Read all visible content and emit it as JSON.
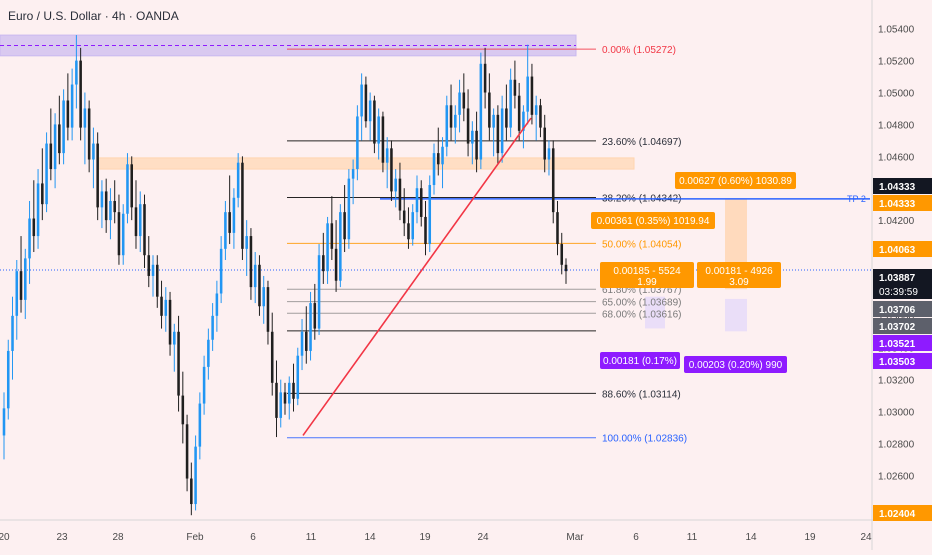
{
  "header": {
    "title": "Euro / U.S. Dollar · 4h · OANDA"
  },
  "colors": {
    "bg": "#fdf0f1",
    "up": "#2196f3",
    "down": "#1f1f1f",
    "trend": "#f23645",
    "fib_black": "#000000",
    "fib_orange": "#ff9800",
    "fib_blue": "#2962ff",
    "zone_purple": "#c9b8f0",
    "zone_orange": "#ffd5b0",
    "label_orange": "#ff9800",
    "label_purple": "#8e1bff",
    "axis_text": "#4a4a4a",
    "tp_blue": "#2962ff"
  },
  "chart_data": {
    "type": "candlestick",
    "symbol": "Euro / U.S. Dollar",
    "interval": "4h",
    "source": "OANDA",
    "x_tick_labels": [
      "20",
      "23",
      "28",
      "Feb",
      "6",
      "11",
      "14",
      "19",
      "24",
      "Mar",
      "6",
      "11",
      "14",
      "19",
      "24"
    ],
    "y_tick_labels": [
      "1.05400",
      "1.05200",
      "1.05000",
      "1.04800",
      "1.04600",
      "1.04400",
      "1.04200",
      "1.04000",
      "1.03800",
      "1.03600",
      "1.03400",
      "1.03200",
      "1.03000",
      "1.02800",
      "1.02600"
    ],
    "ylim": [
      1.0232,
      1.0558
    ],
    "fib_levels": [
      {
        "label": "0.00% (1.05272)",
        "value": 1.05272,
        "color": "#f23645"
      },
      {
        "label": "23.60% (1.04697)",
        "value": 1.04697,
        "color": "#000000"
      },
      {
        "label": "38.20% (1.04342)",
        "value": 1.04342,
        "color": "#000000"
      },
      {
        "label": "50.00% (1.04054)",
        "value": 1.04054,
        "color": "#ff9800"
      },
      {
        "label": "61.80% (1.03767)",
        "value": 1.03767,
        "color": "#7a7a7a"
      },
      {
        "label": "65.00% (1.03689)",
        "value": 1.03689,
        "color": "#7a7a7a"
      },
      {
        "label": "68.00% (1.03616)",
        "value": 1.03616,
        "color": "#7a7a7a"
      },
      {
        "label": "",
        "value": 1.03506,
        "color": "#000000"
      },
      {
        "label": "88.60% (1.03114)",
        "value": 1.03114,
        "color": "#000000"
      },
      {
        "label": "100.00% (1.02836)",
        "value": 1.02836,
        "color": "#2962ff"
      }
    ],
    "zones": [
      {
        "top": 1.0536,
        "bottom": 1.0523,
        "color": "#c9b8f0"
      },
      {
        "top": 1.0459,
        "bottom": 1.0452,
        "color": "#ffd5b0"
      }
    ],
    "measure_labels": [
      {
        "text": "0.00627 (0.60%) 1030.89",
        "color": "#ff9800"
      },
      {
        "text": "0.00361 (0.35%) 1019.94",
        "color": "#ff9800"
      },
      {
        "text": "0.00185 - 5524",
        "sub": "1.99",
        "color": "#ff9800"
      },
      {
        "text": "0.00181 - 4926",
        "sub": "3.09",
        "color": "#ff9800"
      },
      {
        "text": "0.00181 (0.17%)",
        "color": "#8e1bff"
      },
      {
        "text": "0.00203 (0.20%) 990",
        "color": "#8e1bff"
      }
    ],
    "tp_label": "TP 2",
    "price_tags": [
      {
        "text": "1.04333",
        "value": 1.04333,
        "color": "#131722"
      },
      {
        "text": "1.04333",
        "value": 1.04333,
        "color": "#ff9800"
      },
      {
        "text": "1.04063",
        "value": 1.04063,
        "color": "#ff9800"
      },
      {
        "text": "1.03887",
        "sub": "03:39:59",
        "value": 1.03887,
        "color": "#131722"
      },
      {
        "text": "1.03706",
        "value": 1.03706,
        "color": "#5d606b"
      },
      {
        "text": "1.03702",
        "value": 1.03702,
        "color": "#5d606b"
      },
      {
        "text": "1.03521",
        "value": 1.03521,
        "color": "#8e1bff"
      },
      {
        "text": "1.03503",
        "value": 1.03503,
        "color": "#8e1bff"
      },
      {
        "text": "1.02404",
        "value": 1.02404,
        "color": "#ff9800"
      }
    ],
    "trendline": {
      "from": 1.0285,
      "to": 1.0484
    },
    "candles": [
      [
        1.0285,
        1.0312,
        1.027,
        1.0302
      ],
      [
        1.0302,
        1.0345,
        1.0295,
        1.0338
      ],
      [
        1.0338,
        1.0372,
        1.032,
        1.036
      ],
      [
        1.036,
        1.0395,
        1.0345,
        1.0388
      ],
      [
        1.0388,
        1.041,
        1.0362,
        1.037
      ],
      [
        1.037,
        1.0402,
        1.0358,
        1.0396
      ],
      [
        1.0396,
        1.0432,
        1.038,
        1.0421
      ],
      [
        1.0421,
        1.0445,
        1.04,
        1.041
      ],
      [
        1.041,
        1.0452,
        1.0402,
        1.0443
      ],
      [
        1.0443,
        1.0465,
        1.042,
        1.043
      ],
      [
        1.043,
        1.0475,
        1.0425,
        1.0468
      ],
      [
        1.0468,
        1.049,
        1.0445,
        1.0452
      ],
      [
        1.0452,
        1.0487,
        1.044,
        1.048
      ],
      [
        1.048,
        1.0498,
        1.0455,
        1.0462
      ],
      [
        1.0462,
        1.0502,
        1.0455,
        1.0495
      ],
      [
        1.0495,
        1.0512,
        1.047,
        1.0478
      ],
      [
        1.0478,
        1.0515,
        1.047,
        1.0505
      ],
      [
        1.0505,
        1.0536,
        1.049,
        1.052
      ],
      [
        1.052,
        1.0528,
        1.047,
        1.0478
      ],
      [
        1.0478,
        1.05,
        1.0455,
        1.049
      ],
      [
        1.049,
        1.0495,
        1.045,
        1.0458
      ],
      [
        1.0458,
        1.0478,
        1.044,
        1.0468
      ],
      [
        1.0468,
        1.0475,
        1.042,
        1.0428
      ],
      [
        1.0428,
        1.0445,
        1.0415,
        1.0438
      ],
      [
        1.0438,
        1.0446,
        1.0412,
        1.042
      ],
      [
        1.042,
        1.044,
        1.0408,
        1.0432
      ],
      [
        1.0432,
        1.0445,
        1.0418,
        1.0425
      ],
      [
        1.0425,
        1.0436,
        1.0392,
        1.0398
      ],
      [
        1.0398,
        1.043,
        1.0392,
        1.0424
      ],
      [
        1.0424,
        1.0462,
        1.0418,
        1.0455
      ],
      [
        1.0455,
        1.046,
        1.042,
        1.0428
      ],
      [
        1.0428,
        1.0445,
        1.0402,
        1.041
      ],
      [
        1.041,
        1.0438,
        1.04,
        1.043
      ],
      [
        1.043,
        1.0436,
        1.039,
        1.0398
      ],
      [
        1.0398,
        1.041,
        1.0378,
        1.0385
      ],
      [
        1.0385,
        1.0398,
        1.0372,
        1.0392
      ],
      [
        1.0392,
        1.0398,
        1.0365,
        1.0372
      ],
      [
        1.0372,
        1.0382,
        1.0352,
        1.036
      ],
      [
        1.036,
        1.0378,
        1.035,
        1.037
      ],
      [
        1.037,
        1.0375,
        1.0335,
        1.0342
      ],
      [
        1.0342,
        1.0355,
        1.0325,
        1.035
      ],
      [
        1.035,
        1.036,
        1.03,
        1.031
      ],
      [
        1.031,
        1.0325,
        1.028,
        1.0292
      ],
      [
        1.0292,
        1.0298,
        1.025,
        1.0258
      ],
      [
        1.0258,
        1.0268,
        1.0235,
        1.0242
      ],
      [
        1.0242,
        1.0285,
        1.0238,
        1.0278
      ],
      [
        1.0278,
        1.0312,
        1.027,
        1.0305
      ],
      [
        1.0305,
        1.0335,
        1.0298,
        1.0328
      ],
      [
        1.0328,
        1.0352,
        1.032,
        1.0345
      ],
      [
        1.0345,
        1.0368,
        1.0338,
        1.036
      ],
      [
        1.036,
        1.0382,
        1.035,
        1.0374
      ],
      [
        1.0374,
        1.041,
        1.0368,
        1.0402
      ],
      [
        1.0402,
        1.0432,
        1.0395,
        1.0425
      ],
      [
        1.0425,
        1.0448,
        1.0405,
        1.0412
      ],
      [
        1.0412,
        1.044,
        1.0402,
        1.0434
      ],
      [
        1.0434,
        1.0462,
        1.0428,
        1.0456
      ],
      [
        1.0456,
        1.046,
        1.0395,
        1.0402
      ],
      [
        1.0402,
        1.042,
        1.0385,
        1.041
      ],
      [
        1.041,
        1.0415,
        1.037,
        1.0378
      ],
      [
        1.0378,
        1.04,
        1.0368,
        1.0392
      ],
      [
        1.0392,
        1.0398,
        1.036,
        1.0366
      ],
      [
        1.0366,
        1.0385,
        1.0355,
        1.0378
      ],
      [
        1.0378,
        1.0382,
        1.0342,
        1.035
      ],
      [
        1.035,
        1.0362,
        1.031,
        1.0318
      ],
      [
        1.0318,
        1.0332,
        1.0284,
        1.0296
      ],
      [
        1.0296,
        1.032,
        1.029,
        1.0312
      ],
      [
        1.0312,
        1.0318,
        1.0298,
        1.0305
      ],
      [
        1.0305,
        1.0322,
        1.0295,
        1.0318
      ],
      [
        1.0318,
        1.033,
        1.03,
        1.0308
      ],
      [
        1.0308,
        1.034,
        1.0304,
        1.0335
      ],
      [
        1.0335,
        1.0358,
        1.0326,
        1.035
      ],
      [
        1.035,
        1.0366,
        1.033,
        1.0338
      ],
      [
        1.0338,
        1.0375,
        1.0332,
        1.0368
      ],
      [
        1.0368,
        1.038,
        1.0345,
        1.0352
      ],
      [
        1.0352,
        1.0405,
        1.0348,
        1.0398
      ],
      [
        1.0398,
        1.0412,
        1.038,
        1.0388
      ],
      [
        1.0388,
        1.0422,
        1.038,
        1.0418
      ],
      [
        1.0418,
        1.0435,
        1.0395,
        1.0402
      ],
      [
        1.0402,
        1.042,
        1.0375,
        1.0382
      ],
      [
        1.0382,
        1.043,
        1.0378,
        1.0425
      ],
      [
        1.0425,
        1.0442,
        1.04,
        1.0408
      ],
      [
        1.0408,
        1.0452,
        1.0402,
        1.0446
      ],
      [
        1.0446,
        1.0458,
        1.043,
        1.0452
      ],
      [
        1.0452,
        1.0492,
        1.0445,
        1.0485
      ],
      [
        1.0485,
        1.0512,
        1.047,
        1.0505
      ],
      [
        1.0505,
        1.051,
        1.0478,
        1.0482
      ],
      [
        1.0482,
        1.05,
        1.047,
        1.0495
      ],
      [
        1.0495,
        1.0498,
        1.0462,
        1.0468
      ],
      [
        1.0468,
        1.049,
        1.0458,
        1.0485
      ],
      [
        1.0485,
        1.0488,
        1.045,
        1.0456
      ],
      [
        1.0456,
        1.0472,
        1.044,
        1.0465
      ],
      [
        1.0465,
        1.047,
        1.0432,
        1.0438
      ],
      [
        1.0438,
        1.0452,
        1.0428,
        1.0446
      ],
      [
        1.0446,
        1.0456,
        1.042,
        1.0426
      ],
      [
        1.0426,
        1.044,
        1.041,
        1.0418
      ],
      [
        1.0418,
        1.0428,
        1.0402,
        1.0408
      ],
      [
        1.0408,
        1.043,
        1.0404,
        1.0425
      ],
      [
        1.0425,
        1.0448,
        1.0418,
        1.044
      ],
      [
        1.044,
        1.0445,
        1.0416,
        1.0422
      ],
      [
        1.0422,
        1.0432,
        1.0398,
        1.0405
      ],
      [
        1.0405,
        1.0448,
        1.04,
        1.0442
      ],
      [
        1.0442,
        1.0468,
        1.0436,
        1.0462
      ],
      [
        1.0462,
        1.0478,
        1.0448,
        1.0455
      ],
      [
        1.0455,
        1.0472,
        1.044,
        1.0466
      ],
      [
        1.0466,
        1.0498,
        1.046,
        1.0492
      ],
      [
        1.0492,
        1.0505,
        1.047,
        1.0478
      ],
      [
        1.0478,
        1.0492,
        1.0468,
        1.0486
      ],
      [
        1.0486,
        1.0508,
        1.0475,
        1.05
      ],
      [
        1.05,
        1.0512,
        1.0482,
        1.049
      ],
      [
        1.049,
        1.0502,
        1.046,
        1.0468
      ],
      [
        1.0468,
        1.0482,
        1.0455,
        1.0476
      ],
      [
        1.0476,
        1.0488,
        1.045,
        1.0458
      ],
      [
        1.0458,
        1.0525,
        1.0452,
        1.0518
      ],
      [
        1.0518,
        1.0528,
        1.049,
        1.05
      ],
      [
        1.05,
        1.0512,
        1.047,
        1.0478
      ],
      [
        1.0478,
        1.049,
        1.046,
        1.0486
      ],
      [
        1.0486,
        1.0492,
        1.0455,
        1.0462
      ],
      [
        1.0462,
        1.0498,
        1.0456,
        1.049
      ],
      [
        1.049,
        1.0505,
        1.047,
        1.0478
      ],
      [
        1.0478,
        1.0515,
        1.0472,
        1.0508
      ],
      [
        1.0508,
        1.052,
        1.049,
        1.0498
      ],
      [
        1.0498,
        1.0506,
        1.047,
        1.0476
      ],
      [
        1.0476,
        1.0492,
        1.0465,
        1.0488
      ],
      [
        1.0488,
        1.053,
        1.048,
        1.051
      ],
      [
        1.051,
        1.0518,
        1.048,
        1.0486
      ],
      [
        1.0486,
        1.0498,
        1.047,
        1.0492
      ],
      [
        1.0492,
        1.0496,
        1.0472,
        1.0478
      ],
      [
        1.0478,
        1.0486,
        1.045,
        1.0458
      ],
      [
        1.0458,
        1.047,
        1.0448,
        1.0465
      ],
      [
        1.0465,
        1.047,
        1.0418,
        1.0425
      ],
      [
        1.0425,
        1.0432,
        1.0398,
        1.0405
      ],
      [
        1.0405,
        1.0412,
        1.0386,
        1.0392
      ],
      [
        1.0392,
        1.0396,
        1.038,
        1.0388
      ]
    ]
  }
}
